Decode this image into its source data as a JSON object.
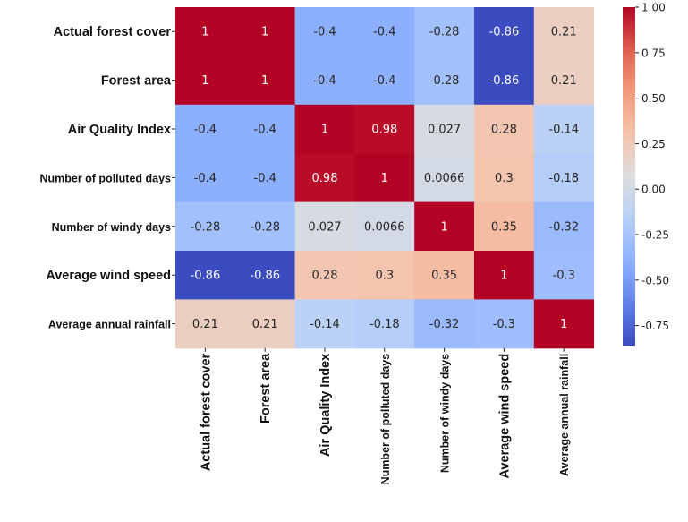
{
  "chart_data": {
    "type": "heatmap",
    "rows": [
      "Actual forest cover",
      "Forest area",
      "Air Quality Index",
      "Number of polluted days",
      "Number of windy days",
      "Average wind speed",
      "Average annual rainfall"
    ],
    "columns": [
      "Actual forest cover",
      "Forest area",
      "Air Quality Index",
      "Number of polluted days",
      "Number of windy days",
      "Average wind speed",
      "Average annual rainfall"
    ],
    "values": [
      [
        1,
        1,
        -0.4,
        -0.4,
        -0.28,
        -0.86,
        0.21
      ],
      [
        1,
        1,
        -0.4,
        -0.4,
        -0.28,
        -0.86,
        0.21
      ],
      [
        -0.4,
        -0.4,
        1,
        0.98,
        0.027,
        0.28,
        -0.14
      ],
      [
        -0.4,
        -0.4,
        0.98,
        1,
        0.0066,
        0.3,
        -0.18
      ],
      [
        -0.28,
        -0.28,
        0.027,
        0.0066,
        1,
        0.35,
        -0.32
      ],
      [
        -0.86,
        -0.86,
        0.28,
        0.3,
        0.35,
        1,
        -0.3
      ],
      [
        0.21,
        0.21,
        -0.14,
        -0.18,
        -0.32,
        -0.3,
        1
      ]
    ],
    "cell_text": [
      [
        "1",
        "1",
        "-0.4",
        "-0.4",
        "-0.28",
        "-0.86",
        "0.21"
      ],
      [
        "1",
        "1",
        "-0.4",
        "-0.4",
        "-0.28",
        "-0.86",
        "0.21"
      ],
      [
        "-0.4",
        "-0.4",
        "1",
        "0.98",
        "0.027",
        "0.28",
        "-0.14"
      ],
      [
        "-0.4",
        "-0.4",
        "0.98",
        "1",
        "0.0066",
        "0.3",
        "-0.18"
      ],
      [
        "-0.28",
        "-0.28",
        "0.027",
        "0.0066",
        "1",
        "0.35",
        "-0.32"
      ],
      [
        "-0.86",
        "-0.86",
        "0.28",
        "0.3",
        "0.35",
        "1",
        "-0.3"
      ],
      [
        "0.21",
        "0.21",
        "-0.14",
        "-0.18",
        "-0.32",
        "-0.3",
        "1"
      ]
    ],
    "colormap": "coolwarm",
    "color_range": [
      -0.86,
      1.0
    ],
    "colorbar_ticks": [
      1.0,
      0.75,
      0.5,
      0.25,
      0.0,
      -0.25,
      -0.5,
      -0.75
    ],
    "colorbar_tick_labels": [
      "1.00",
      "0.75",
      "0.50",
      "0.25",
      "0.00",
      "-0.25",
      "-0.50",
      "-0.75"
    ],
    "title": "",
    "xlabel": "",
    "ylabel": ""
  }
}
